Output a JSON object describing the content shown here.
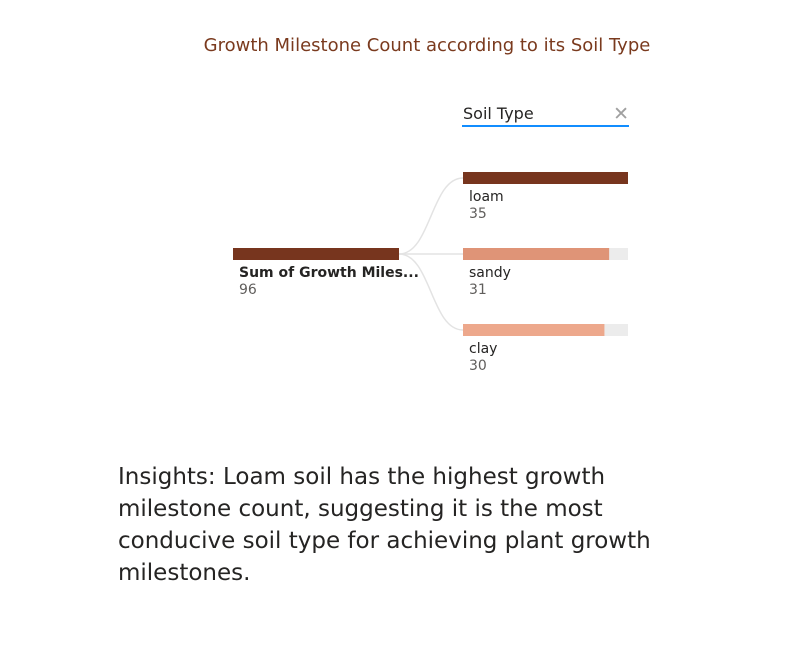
{
  "chart_data": {
    "type": "decomposition-tree",
    "title": "Growth Milestone Count according to its Soil Type",
    "root": {
      "label": "Sum of Growth Miles...",
      "value": 96
    },
    "level_header": "Soil Type",
    "categories": [
      "loam",
      "sandy",
      "clay"
    ],
    "values": [
      35,
      31,
      30
    ],
    "colors": {
      "root": "#77351e",
      "loam": "#77351e",
      "sandy": "#df9477",
      "clay": "#eda88c",
      "track": "#ececec",
      "connector": "#e3e3e3"
    }
  },
  "insights": "Insights: Loam soil has the highest growth milestone count, suggesting it is the most conducive soil type for achieving plant growth milestones."
}
